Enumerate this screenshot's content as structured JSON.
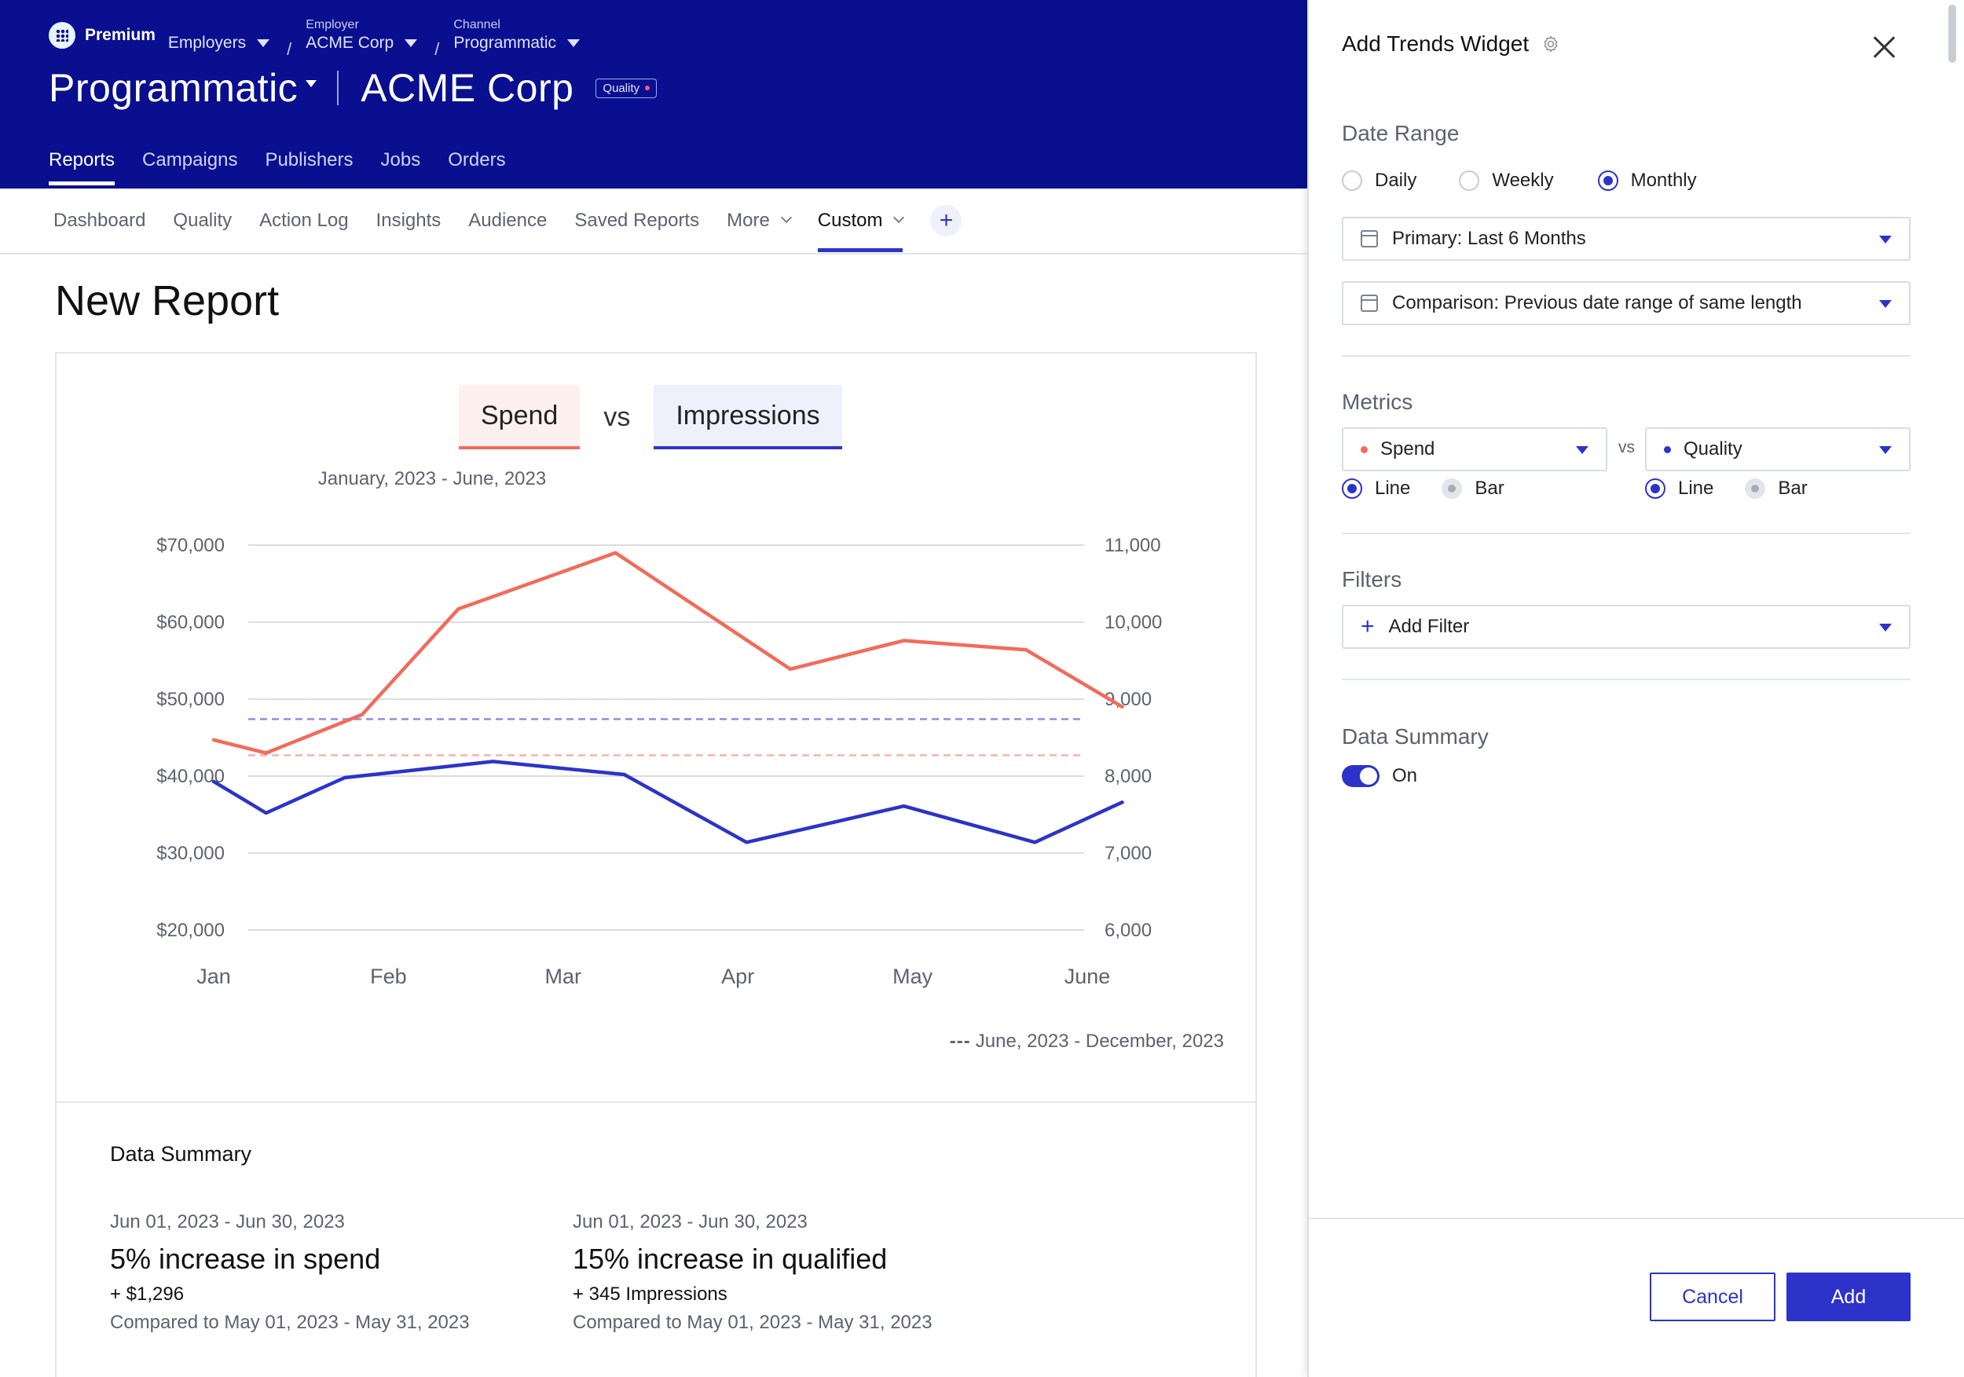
{
  "header": {
    "brand": "Premium",
    "crumbs": [
      {
        "caption": "",
        "value": "Employers"
      },
      {
        "caption": "Employer",
        "value": "ACME Corp"
      },
      {
        "caption": "Channel",
        "value": "Programmatic"
      }
    ],
    "title_channel": "Programmatic",
    "title_employer": "ACME Corp",
    "badge": "Quality",
    "nav": [
      "Reports",
      "Campaigns",
      "Publishers",
      "Jobs",
      "Orders"
    ],
    "nav_active": "Reports"
  },
  "subnav": {
    "items": [
      "Dashboard",
      "Quality",
      "Action Log",
      "Insights",
      "Audience",
      "Saved Reports",
      "More",
      "Custom"
    ],
    "active": "Custom",
    "add_symbol": "+"
  },
  "report": {
    "title": "New Report",
    "legend": {
      "left": "Spend",
      "vs": "vs",
      "right": "Impressions"
    },
    "date_range": "January, 2023 - June, 2023",
    "comparison_note": "June, 2023 - December, 2023",
    "comparison_dash": "---"
  },
  "chart_data": {
    "type": "line",
    "title": "",
    "x_ticks": [
      "Jan",
      "Feb",
      "Mar",
      "Apr",
      "May",
      "June"
    ],
    "y_left_ticks": [
      "$70,000",
      "$60,000",
      "$50,000",
      "$40,000",
      "$30,000",
      "$20,000"
    ],
    "y_right_ticks": [
      "11,000",
      "10,000",
      "9,000",
      "8,000",
      "7,000",
      "6,000"
    ],
    "ylim_left": [
      20000,
      70000
    ],
    "ylim_right": [
      6000,
      11000
    ],
    "grid": true,
    "series": [
      {
        "name": "Spend",
        "axis": "left",
        "color": "#f26b5b",
        "x": [
          0,
          0.3,
          0.85,
          1.4,
          2.3,
          3.3,
          3.95,
          4.65,
          5.2
        ],
        "values": [
          44700,
          43000,
          48000,
          61700,
          69000,
          53900,
          57600,
          56400,
          49000
        ]
      },
      {
        "name": "Impressions",
        "axis": "right",
        "color": "#2d33c8",
        "x": [
          0,
          0.3,
          0.75,
          1.6,
          2.35,
          3.05,
          3.95,
          4.7,
          5.2
        ],
        "values": [
          7930,
          7520,
          7980,
          8190,
          8020,
          7140,
          7610,
          7140,
          7660
        ]
      }
    ],
    "comparison": [
      {
        "name": "Impressions",
        "axis": "right",
        "color": "#8a8ee3",
        "value": 8740
      },
      {
        "name": "Spend",
        "axis": "left",
        "color": "#f6b3aa",
        "value": 42700
      }
    ]
  },
  "summary": {
    "title": "Data Summary",
    "items": [
      {
        "date": "Jun 01, 2023 - Jun 30, 2023",
        "headline": "5% increase in spend",
        "delta": "+ $1,296",
        "comparison": "Compared to May 01, 2023 - May 31, 2023"
      },
      {
        "date": "Jun 01, 2023 - Jun 30, 2023",
        "headline": "15% increase in qualified",
        "delta": "+ 345 Impressions",
        "comparison": "Compared to May 01, 2023 - May 31, 2023"
      }
    ]
  },
  "panel": {
    "title": "Add Trends Widget",
    "date_range_label": "Date Range",
    "granularity": [
      "Daily",
      "Weekly",
      "Monthly"
    ],
    "granularity_selected": "Monthly",
    "primary_range": "Primary: Last 6 Months",
    "comparison_range": "Comparison: Previous date range of same length",
    "metrics_label": "Metrics",
    "metric_left": {
      "name": "Spend",
      "color": "#f26b5b",
      "types": [
        "Line",
        "Bar"
      ],
      "selected": "Line"
    },
    "metric_vs": "vs",
    "metric_right": {
      "name": "Quality",
      "color": "#2d33c8",
      "types": [
        "Line",
        "Bar"
      ],
      "selected": "Line"
    },
    "filters_label": "Filters",
    "add_filter": "Add Filter",
    "data_summary_label": "Data Summary",
    "data_summary_state": "On",
    "cancel": "Cancel",
    "add": "Add"
  }
}
